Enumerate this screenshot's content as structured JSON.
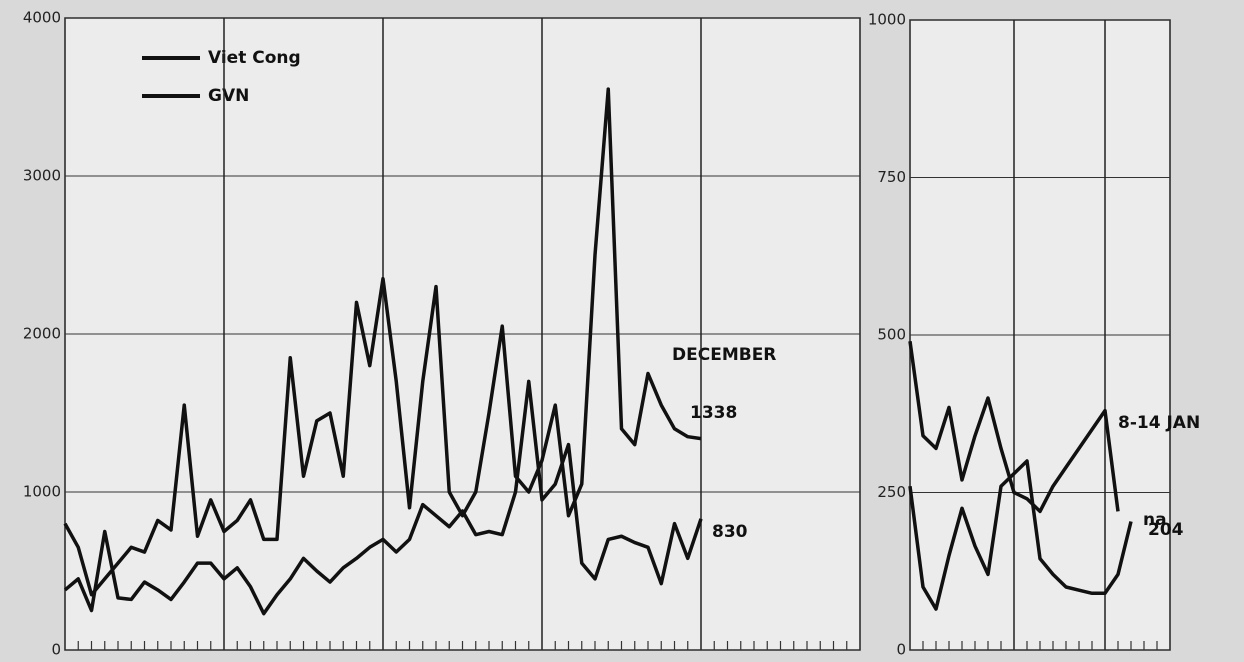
{
  "chart_data": [
    {
      "type": "line",
      "ylim": [
        0,
        4000
      ],
      "yticks": [
        0,
        1000,
        2000,
        3000,
        4000
      ],
      "xlim": [
        0,
        60
      ],
      "xgrid": [
        12,
        24,
        36,
        48
      ],
      "grid": true,
      "annotations": [
        "DECEMBER",
        "1338",
        "830"
      ],
      "series": [
        {
          "name": "Viet Cong",
          "color": "#111111",
          "values": [
            800,
            650,
            350,
            450,
            550,
            650,
            620,
            820,
            760,
            1550,
            720,
            950,
            750,
            820,
            950,
            700,
            700,
            1850,
            1100,
            1450,
            1500,
            1100,
            2200,
            1800,
            2350,
            1700,
            900,
            1700,
            2300,
            1000,
            850,
            1000,
            1500,
            2050,
            1100,
            1000,
            1200,
            1550,
            850,
            1050,
            2500,
            3550,
            1400,
            1300,
            1750,
            1550,
            1400,
            1350,
            1338
          ]
        },
        {
          "name": "GVN",
          "color": "#111111",
          "values": [
            380,
            450,
            250,
            750,
            330,
            320,
            430,
            380,
            320,
            430,
            550,
            550,
            450,
            520,
            400,
            230,
            350,
            450,
            580,
            500,
            430,
            520,
            580,
            650,
            700,
            620,
            700,
            920,
            850,
            780,
            880,
            730,
            750,
            730,
            1000,
            1700,
            950,
            1050,
            1300,
            550,
            450,
            700,
            720,
            680,
            650,
            420,
            800,
            580,
            830
          ]
        }
      ]
    },
    {
      "type": "line",
      "ylim": [
        0,
        1000
      ],
      "yticks": [
        0,
        250,
        500,
        750,
        1000
      ],
      "xlim": [
        0,
        20
      ],
      "xgrid": [
        8,
        15
      ],
      "grid": true,
      "annotations": [
        "8-14 JAN",
        "na",
        "204"
      ],
      "series": [
        {
          "color": "#111111",
          "values": [
            490,
            340,
            320,
            385,
            270,
            340,
            400,
            320,
            250,
            240,
            220,
            260,
            290,
            320,
            350,
            380,
            220
          ]
        },
        {
          "color": "#111111",
          "values": [
            260,
            100,
            65,
            150,
            225,
            165,
            120,
            260,
            280,
            300,
            145,
            120,
            100,
            95,
            90,
            90,
            120,
            204
          ]
        }
      ]
    }
  ]
}
